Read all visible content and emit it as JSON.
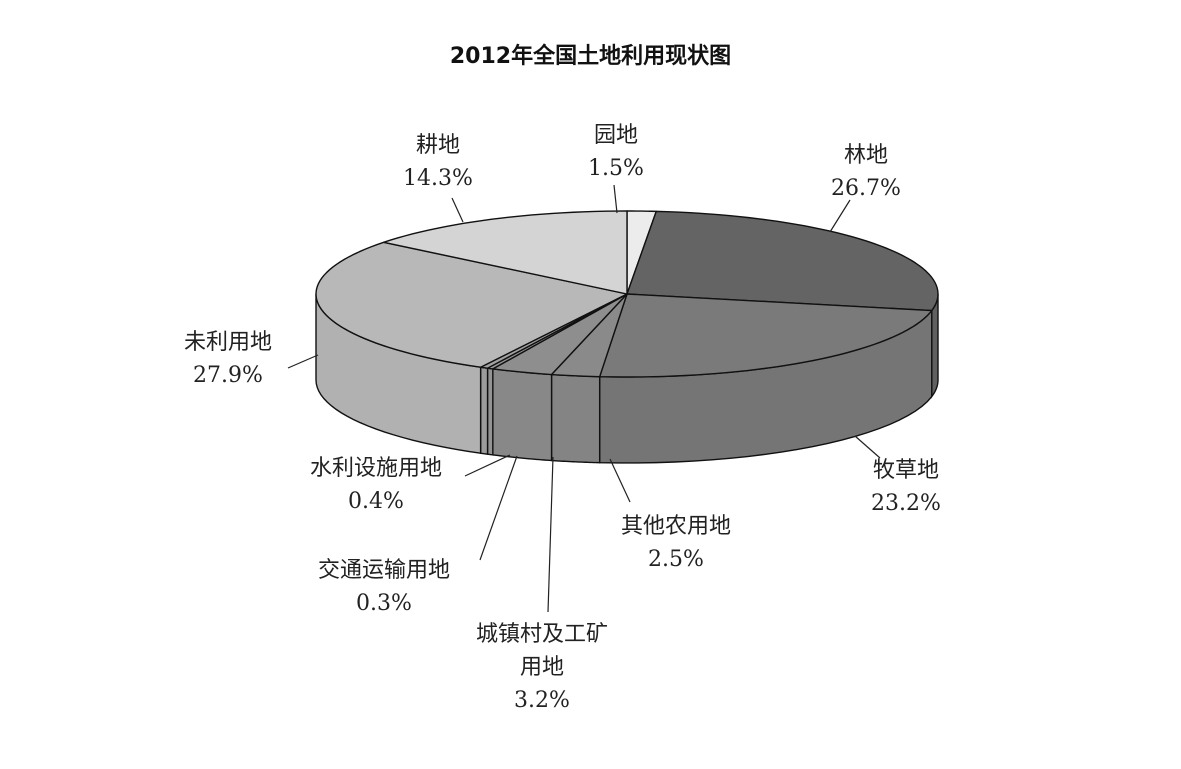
{
  "chart_data": {
    "type": "pie",
    "title": "2012年全国土地利用现状图",
    "three_d": true,
    "slices": [
      {
        "name": "园地",
        "value": 1.5,
        "label_lines": [
          "园地"
        ],
        "pct": "1.5%",
        "color": "#ececec"
      },
      {
        "name": "林地",
        "value": 26.7,
        "label_lines": [
          "林地"
        ],
        "pct": "26.7%",
        "color": "#646464"
      },
      {
        "name": "牧草地",
        "value": 23.2,
        "label_lines": [
          "牧草地"
        ],
        "pct": "23.2%",
        "color": "#7a7a7a"
      },
      {
        "name": "其他农用地",
        "value": 2.5,
        "label_lines": [
          "其他农用地"
        ],
        "pct": "2.5%",
        "color": "#8a8a8a"
      },
      {
        "name": "城镇村及工矿用地",
        "value": 3.2,
        "label_lines": [
          "城镇村及工矿",
          "用地"
        ],
        "pct": "3.2%",
        "color": "#8e8e8e"
      },
      {
        "name": "交通运输用地",
        "value": 0.3,
        "label_lines": [
          "交通运输用地"
        ],
        "pct": "0.3%",
        "color": "#999999"
      },
      {
        "name": "水利设施用地",
        "value": 0.4,
        "label_lines": [
          "水利设施用地"
        ],
        "pct": "0.4%",
        "color": "#a2a2a2"
      },
      {
        "name": "未利用地",
        "value": 27.9,
        "label_lines": [
          "未利用地"
        ],
        "pct": "27.9%",
        "color": "#b8b8b8"
      },
      {
        "name": "耕地",
        "value": 14.3,
        "label_lines": [
          "耕地"
        ],
        "pct": "14.3%",
        "color": "#d4d4d4"
      }
    ]
  }
}
